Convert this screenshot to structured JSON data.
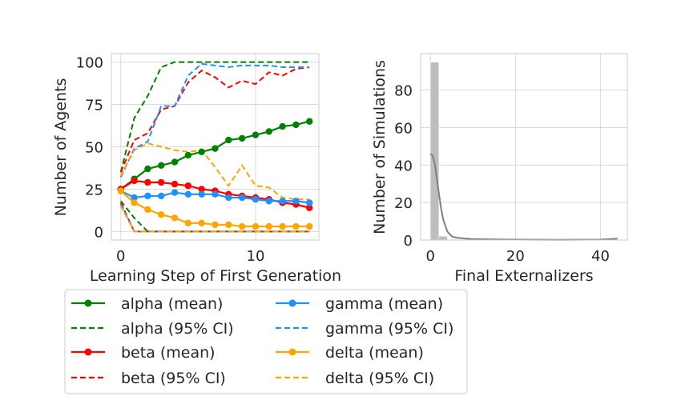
{
  "chart_data": [
    {
      "type": "line",
      "xlabel": "Learning Step of First Generation",
      "ylabel": "Number of Agents",
      "xlim": [
        -0.7,
        14.7
      ],
      "ylim": [
        -5,
        105
      ],
      "xticks": [
        0,
        10
      ],
      "yticks": [
        0,
        25,
        50,
        75,
        100
      ],
      "grid": true,
      "x": [
        0,
        1,
        2,
        3,
        4,
        5,
        6,
        7,
        8,
        9,
        10,
        11,
        12,
        13,
        14
      ],
      "series": [
        {
          "name": "alpha (mean)",
          "kind": "mean",
          "color": "#008000",
          "values": [
            25,
            31,
            37,
            39,
            41,
            45,
            47,
            49,
            54,
            55,
            57,
            59,
            62,
            63,
            65
          ]
        },
        {
          "name": "alpha (95% CI)",
          "kind": "ci",
          "color": "#008000",
          "upper": [
            35,
            67,
            80,
            97,
            100,
            100,
            100,
            100,
            100,
            100,
            100,
            100,
            100,
            100,
            100
          ],
          "lower": [
            18,
            8,
            0,
            0,
            0,
            0,
            0,
            0,
            0,
            0,
            0,
            0,
            0,
            0,
            0
          ]
        },
        {
          "name": "beta (mean)",
          "kind": "mean",
          "color": "#ff0000",
          "values": [
            25,
            30,
            29,
            29,
            28,
            27,
            25,
            24,
            22,
            21,
            20,
            19,
            17,
            16,
            14
          ]
        },
        {
          "name": "beta (95% CI)",
          "kind": "ci",
          "color": "#ff0000",
          "upper": [
            35,
            54,
            58,
            72,
            74,
            88,
            95,
            91,
            85,
            89,
            87,
            94,
            92,
            96,
            97
          ],
          "lower": [
            17,
            0,
            0,
            0,
            0,
            0,
            0,
            0,
            0,
            0,
            0,
            0,
            0,
            0,
            0
          ]
        },
        {
          "name": "gamma (mean)",
          "kind": "mean",
          "color": "#1e90ff",
          "values": [
            24,
            20,
            21,
            21,
            23,
            22,
            22,
            22,
            20,
            20,
            19,
            18,
            18,
            18,
            17
          ]
        },
        {
          "name": "gamma (95% CI)",
          "kind": "ci",
          "color": "#1e90ff",
          "upper": [
            32,
            49,
            53,
            74,
            74,
            92,
            99,
            98,
            97,
            98,
            98,
            98,
            97,
            97,
            97
          ],
          "lower": [
            16,
            0,
            0,
            0,
            0,
            0,
            0,
            0,
            0,
            0,
            0,
            0,
            0,
            0,
            0
          ]
        },
        {
          "name": "delta (mean)",
          "kind": "mean",
          "color": "#ffa500",
          "values": [
            24,
            17,
            13,
            10,
            8,
            5,
            5,
            4,
            4,
            3,
            3,
            3,
            3,
            3,
            3
          ]
        },
        {
          "name": "delta (95% CI)",
          "kind": "ci",
          "color": "#ffa500",
          "upper": [
            33,
            48,
            52,
            50,
            48,
            47,
            48,
            38,
            27,
            39,
            27,
            26,
            20,
            19,
            19
          ],
          "lower": [
            15,
            0,
            0,
            0,
            0,
            0,
            0,
            0,
            0,
            0,
            0,
            0,
            0,
            0,
            0
          ]
        }
      ]
    },
    {
      "type": "histogram",
      "xlabel": "Final Externalizers",
      "ylabel": "Number of Simulations",
      "xlim": [
        -2.3,
        46.3
      ],
      "ylim": [
        0,
        99.5
      ],
      "xticks": [
        0,
        20,
        40
      ],
      "yticks": [
        0,
        20,
        40,
        60,
        80
      ],
      "grid": true,
      "bins": [
        {
          "x0": 0,
          "x1": 2,
          "count": 95
        },
        {
          "x0": 2,
          "x1": 4,
          "count": 2
        }
      ],
      "bar_color": "#bdbdbd",
      "kde": {
        "color": "#808080",
        "x": [
          0,
          0.5,
          1,
          1.5,
          2,
          2.5,
          3,
          4,
          5,
          6,
          8,
          10,
          15,
          20,
          30,
          40,
          43,
          44
        ],
        "y": [
          46,
          45,
          41,
          33,
          25,
          17,
          11,
          4.5,
          2,
          1.3,
          0.8,
          0.5,
          0.3,
          0.2,
          0.1,
          0.2,
          0.6,
          0.8
        ]
      }
    }
  ],
  "legend": {
    "placement": "bottom-left",
    "columns": 2,
    "entries": [
      {
        "label": "alpha (mean)",
        "color": "#008000",
        "style": "solid-marker"
      },
      {
        "label": "alpha (95% CI)",
        "color": "#008000",
        "style": "dashed"
      },
      {
        "label": "beta (mean)",
        "color": "#ff0000",
        "style": "solid-marker"
      },
      {
        "label": "beta (95% CI)",
        "color": "#ff0000",
        "style": "dashed"
      },
      {
        "label": "gamma (mean)",
        "color": "#1e90ff",
        "style": "solid-marker"
      },
      {
        "label": "gamma (95% CI)",
        "color": "#1e90ff",
        "style": "dashed"
      },
      {
        "label": "delta (mean)",
        "color": "#ffa500",
        "style": "solid-marker"
      },
      {
        "label": "delta (95% CI)",
        "color": "#ffa500",
        "style": "dashed"
      }
    ]
  }
}
